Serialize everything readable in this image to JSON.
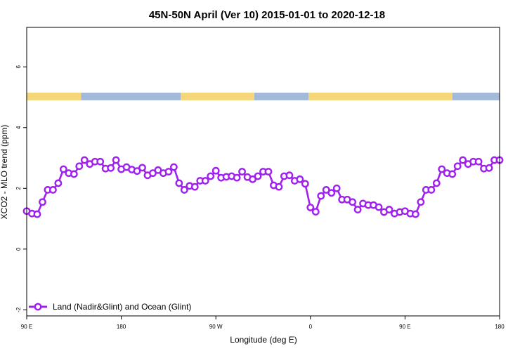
{
  "chart_data": {
    "type": "line",
    "title": "45N-50N April (Ver 10)   2015-01-01 to 2020-12-18",
    "xlabel": "Longitude (deg E)",
    "ylabel": "XCO2 - MLO trend (ppm)",
    "xlim": [
      -90,
      180
    ],
    "ylim": [
      -2.2,
      7.3
    ],
    "x_ticks": [
      {
        "value": -90,
        "label": "90 E"
      },
      {
        "value": -36,
        "label": "180"
      },
      {
        "value": 18,
        "label": "90 W"
      },
      {
        "value": 72,
        "label": "0"
      },
      {
        "value": 126,
        "label": "90 E"
      },
      {
        "value": 180,
        "label": "180"
      }
    ],
    "y_ticks": [
      {
        "value": -2,
        "label": "-2"
      },
      {
        "value": 0,
        "label": "0"
      },
      {
        "value": 2,
        "label": "2"
      },
      {
        "value": 4,
        "label": "4"
      },
      {
        "value": 6,
        "label": "6"
      }
    ],
    "legend": {
      "position": "bottom-left",
      "label": "Land (Nadir&Glint) and Ocean (Glint)"
    },
    "colors": {
      "series": "#a020f0",
      "land": "#f5d77a",
      "ocean": "#a3b9d9",
      "axis": "#000000"
    },
    "surface_strip": {
      "y_range": [
        4.9,
        5.15
      ],
      "segments": [
        {
          "from": -90,
          "to": -59,
          "type": "land"
        },
        {
          "from": -59,
          "to": -2,
          "type": "ocean"
        },
        {
          "from": -2,
          "to": 40,
          "type": "land"
        },
        {
          "from": 40,
          "to": 71,
          "type": "ocean"
        },
        {
          "from": 71,
          "to": 153,
          "type": "land"
        },
        {
          "from": 153,
          "to": 180,
          "type": "ocean"
        }
      ]
    },
    "series": [
      {
        "name": "Land (Nadir&Glint) and Ocean (Glint)",
        "x": [
          -90,
          -87,
          -84,
          -81,
          -78,
          -75,
          -72,
          -69,
          -66,
          -63,
          -60,
          -57,
          -54,
          -51,
          -48,
          -45,
          -42,
          -39,
          -36,
          -33,
          -30,
          -27,
          -24,
          -21,
          -18,
          -15,
          -12,
          -9,
          -6,
          -3,
          0,
          3,
          6,
          9,
          12,
          15,
          18,
          21,
          24,
          27,
          30,
          33,
          36,
          39,
          42,
          45,
          48,
          51,
          54,
          57,
          60,
          63,
          66,
          69,
          72,
          75,
          78,
          81,
          84,
          87,
          90,
          93,
          96,
          99,
          102,
          105,
          108,
          111,
          114,
          117,
          120,
          123,
          126,
          129,
          132,
          135,
          138,
          141,
          144,
          147,
          150,
          153,
          156,
          159,
          162,
          165,
          168,
          171,
          174,
          177,
          180
        ],
        "values": [
          1.25,
          1.17,
          1.15,
          1.55,
          1.95,
          1.95,
          2.17,
          2.63,
          2.5,
          2.47,
          2.73,
          2.93,
          2.8,
          2.88,
          2.88,
          2.65,
          2.67,
          2.93,
          2.63,
          2.7,
          2.62,
          2.57,
          2.68,
          2.43,
          2.5,
          2.6,
          2.5,
          2.55,
          2.7,
          2.17,
          1.95,
          2.08,
          2.05,
          2.25,
          2.25,
          2.4,
          2.58,
          2.35,
          2.38,
          2.4,
          2.35,
          2.55,
          2.37,
          2.3,
          2.4,
          2.55,
          2.55,
          2.1,
          2.05,
          2.4,
          2.43,
          2.25,
          2.3,
          2.15,
          1.37,
          1.23,
          1.75,
          1.95,
          1.85,
          2.0,
          1.63,
          1.63,
          1.55,
          1.3,
          1.5,
          1.45,
          1.45,
          1.38,
          1.22,
          1.3,
          1.17,
          1.22,
          1.25,
          1.17,
          1.15,
          1.55,
          1.95,
          1.95,
          2.17,
          2.63,
          2.5,
          2.47,
          2.73,
          2.93,
          2.8,
          2.88,
          2.88,
          2.65,
          2.67,
          2.93,
          2.93
        ]
      }
    ]
  }
}
